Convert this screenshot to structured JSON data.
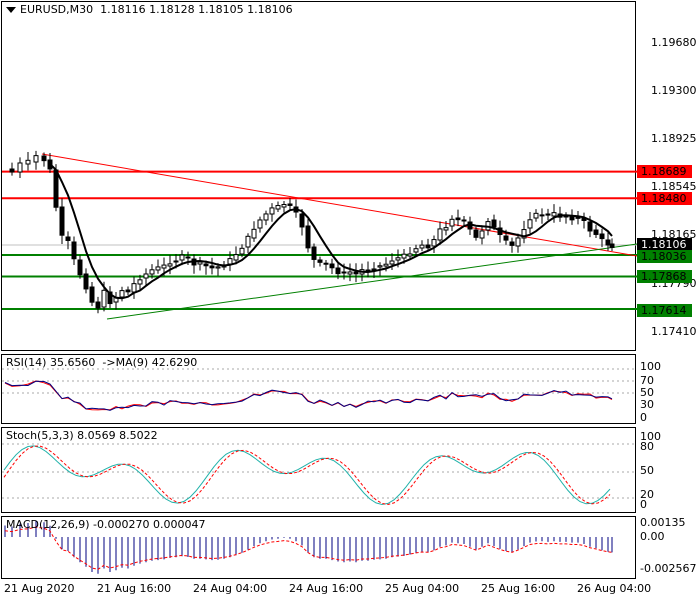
{
  "main": {
    "title": "EURUSD,M30  1.18116 1.18128 1.18105 1.18106",
    "price_axis": [
      "1.19680",
      "1.19300",
      "1.18925",
      "1.18545",
      "1.18165",
      "1.17790",
      "1.17410"
    ],
    "levels": [
      {
        "label": "1.18689",
        "value": 1.18689,
        "color": "#ff0000"
      },
      {
        "label": "1.18480",
        "value": 1.1848,
        "color": "#ff0000"
      },
      {
        "label": "1.18036",
        "value": 1.18036,
        "color": "#008000"
      },
      {
        "label": "1.17868",
        "value": 1.17868,
        "color": "#008000"
      },
      {
        "label": "1.17614",
        "value": 1.17614,
        "color": "#008000"
      }
    ],
    "current_price": "1.18106"
  },
  "rsi": {
    "title": "RSI(14) 35.6560  ->MA(9) 42.6290",
    "axis": [
      "100",
      "70",
      "50",
      "30",
      "0"
    ]
  },
  "stoch": {
    "title": "Stoch(5,3,3) 8.0569 8.5022",
    "axis": [
      "100",
      "80",
      "50",
      "20",
      "0"
    ]
  },
  "macd": {
    "title": "MACD(12,26,9) -0.000270 0.000047",
    "axis": [
      "0.00135",
      "0.00",
      "-0.002567"
    ]
  },
  "time_axis": [
    "21 Aug 2020",
    "21 Aug 16:00",
    "24 Aug 04:00",
    "24 Aug 16:00",
    "25 Aug 04:00",
    "25 Aug 16:00",
    "26 Aug 04:00"
  ],
  "colors": {
    "bull": "#ffffff",
    "bear": "#000000",
    "resistance": "#ff0000",
    "support": "#008000",
    "ma": "#000000",
    "rsi": "#ff0000",
    "rsi_ma": "#000080",
    "stoch_main": "#20b2aa",
    "stoch_signal": "#ff0000",
    "macd_hist": "#000080",
    "macd_signal": "#ff0000"
  }
}
